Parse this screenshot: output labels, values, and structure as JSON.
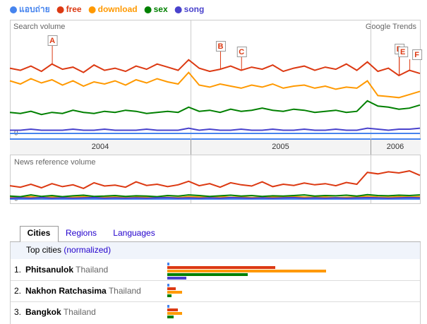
{
  "chart_data": [
    {
      "type": "line",
      "title": "Search volume",
      "source": "Google Trends",
      "ylim": [
        0,
        100
      ],
      "yticks": [
        0
      ],
      "x_labels": [
        "2004",
        "2005",
        "2006"
      ],
      "series": [
        {
          "name": "แอบถ่าย",
          "color": "#4684ee",
          "values": [
            0,
            0,
            0,
            0,
            0,
            0,
            0,
            0,
            0,
            0,
            0,
            0,
            0,
            0,
            0,
            0,
            0,
            0,
            0,
            0,
            0,
            0,
            0,
            0,
            0,
            0,
            0,
            0,
            0,
            0,
            0,
            0,
            0,
            0,
            0,
            0,
            0,
            0,
            0,
            0
          ]
        },
        {
          "name": "free",
          "color": "#dc3912",
          "values": [
            62,
            60,
            64,
            59,
            66,
            61,
            63,
            58,
            65,
            60,
            62,
            59,
            64,
            61,
            66,
            63,
            60,
            70,
            62,
            59,
            61,
            64,
            60,
            63,
            61,
            65,
            59,
            62,
            64,
            60,
            63,
            61,
            66,
            60,
            68,
            59,
            62,
            55,
            60,
            57
          ]
        },
        {
          "name": "download",
          "color": "#ff9900",
          "values": [
            50,
            47,
            52,
            48,
            51,
            46,
            50,
            45,
            49,
            47,
            50,
            46,
            51,
            48,
            52,
            49,
            47,
            58,
            46,
            44,
            47,
            45,
            43,
            46,
            44,
            47,
            43,
            45,
            46,
            43,
            45,
            42,
            44,
            43,
            50,
            36,
            35,
            34,
            37,
            40
          ]
        },
        {
          "name": "sex",
          "color": "#008000",
          "values": [
            20,
            19,
            21,
            18,
            20,
            19,
            22,
            20,
            19,
            21,
            20,
            22,
            21,
            19,
            20,
            21,
            20,
            25,
            21,
            22,
            20,
            23,
            21,
            22,
            24,
            22,
            21,
            23,
            22,
            20,
            21,
            22,
            20,
            21,
            31,
            26,
            25,
            23,
            24,
            27
          ]
        },
        {
          "name": "song",
          "color": "#4942cc",
          "values": [
            3,
            3,
            4,
            3,
            3,
            3,
            4,
            3,
            3,
            4,
            3,
            3,
            3,
            4,
            3,
            3,
            3,
            5,
            3,
            4,
            3,
            3,
            4,
            3,
            3,
            4,
            3,
            3,
            4,
            3,
            3,
            4,
            3,
            3,
            5,
            4,
            3,
            4,
            4,
            5
          ]
        }
      ],
      "annotations": [
        {
          "label": "A",
          "x": 4
        },
        {
          "label": "B",
          "x": 20
        },
        {
          "label": "C",
          "x": 22
        },
        {
          "label": "D",
          "x": 37
        },
        {
          "label": "E",
          "x": 37
        },
        {
          "label": "F",
          "x": 38
        }
      ]
    },
    {
      "type": "line",
      "title": "News reference volume",
      "ylim": [
        0,
        100
      ],
      "yticks": [
        0
      ],
      "series": [
        {
          "color": "#4684ee",
          "values": [
            0,
            0,
            0,
            0,
            0,
            0,
            0,
            0,
            0,
            0,
            0,
            0,
            0,
            0,
            0,
            0,
            0,
            0,
            0,
            0,
            0,
            0,
            0,
            0,
            0,
            0,
            0,
            0,
            0,
            0,
            0,
            0,
            0,
            0,
            0,
            0,
            0,
            0,
            0,
            0
          ]
        },
        {
          "color": "#dc3912",
          "values": [
            45,
            40,
            50,
            38,
            52,
            42,
            48,
            36,
            55,
            44,
            47,
            40,
            58,
            46,
            50,
            42,
            48,
            60,
            45,
            52,
            40,
            55,
            48,
            44,
            58,
            42,
            50,
            46,
            54,
            48,
            52,
            45,
            56,
            50,
            90,
            85,
            92,
            88,
            95,
            80
          ]
        },
        {
          "color": "#ff9900",
          "values": [
            6,
            5,
            8,
            4,
            7,
            5,
            6,
            8,
            5,
            6,
            7,
            5,
            6,
            7,
            5,
            6,
            5,
            8,
            7,
            6,
            8,
            6,
            7,
            5,
            6,
            7,
            6,
            8,
            7,
            6,
            7,
            5,
            6,
            7,
            9,
            7,
            6,
            8,
            7,
            8
          ]
        },
        {
          "color": "#008000",
          "values": [
            10,
            8,
            14,
            9,
            12,
            8,
            11,
            13,
            9,
            10,
            12,
            9,
            11,
            10,
            8,
            12,
            10,
            14,
            12,
            9,
            11,
            13,
            10,
            12,
            9,
            11,
            10,
            12,
            14,
            10,
            12,
            11,
            13,
            10,
            15,
            12,
            11,
            13,
            12,
            14
          ]
        },
        {
          "color": "#4942cc",
          "values": [
            3,
            4,
            3,
            5,
            3,
            4,
            3,
            4,
            5,
            3,
            4,
            3,
            4,
            3,
            4,
            5,
            3,
            4,
            3,
            4,
            3,
            5,
            4,
            3,
            4,
            3,
            4,
            5,
            3,
            4,
            3,
            4,
            3,
            4,
            5,
            4,
            3,
            4,
            5,
            4
          ]
        }
      ]
    }
  ],
  "tabs": [
    "Cities",
    "Regions",
    "Languages"
  ],
  "cities": {
    "heading": "Top cities",
    "note": "(normalized)",
    "xlim": [
      0,
      100
    ],
    "rows": [
      {
        "rank": "1.",
        "name": "Phitsanulok",
        "country": "Thailand",
        "values": [
          1,
          51,
          75,
          38,
          9
        ]
      },
      {
        "rank": "2.",
        "name": "Nakhon Ratchasima",
        "country": "Thailand",
        "values": [
          1,
          4,
          7,
          2,
          0
        ]
      },
      {
        "rank": "3.",
        "name": "Bangkok",
        "country": "Thailand",
        "values": [
          1,
          5,
          7,
          3,
          0
        ]
      }
    ]
  }
}
